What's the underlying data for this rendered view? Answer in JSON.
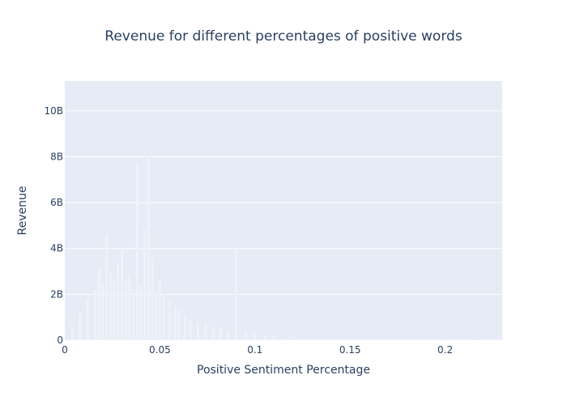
{
  "chart_data": {
    "type": "bar",
    "title": "Revenue for different percentages of positive words",
    "xlabel": "Positive Sentiment Percentage",
    "ylabel": "Revenue",
    "xlim": [
      0,
      0.23
    ],
    "ylim": [
      0,
      11.3
    ],
    "x_ticks": [
      0,
      0.05,
      0.1,
      0.15,
      0.2
    ],
    "x_tick_labels": [
      "0",
      "0.05",
      "0.1",
      "0.15",
      "0.2"
    ],
    "y_ticks": [
      0,
      2,
      4,
      6,
      8,
      10
    ],
    "y_tick_labels": [
      "0",
      "2B",
      "4B",
      "6B",
      "8B",
      "10B"
    ],
    "y_unit": "billions",
    "grid": true,
    "colors": {
      "plot_bg": "#e5ecf6",
      "grid": "#ffffff",
      "bar": "#eef2f9",
      "text": "#2a3f5f"
    },
    "x": [
      0.004,
      0.008,
      0.012,
      0.016,
      0.018,
      0.02,
      0.022,
      0.024,
      0.026,
      0.028,
      0.03,
      0.032,
      0.034,
      0.036,
      0.038,
      0.04,
      0.042,
      0.044,
      0.046,
      0.048,
      0.05,
      0.052,
      0.055,
      0.058,
      0.06,
      0.063,
      0.066,
      0.07,
      0.074,
      0.078,
      0.082,
      0.086,
      0.09,
      0.095,
      0.1,
      0.105,
      0.11,
      0.12,
      0.13,
      0.14,
      0.15,
      0.165,
      0.18,
      0.2,
      0.215
    ],
    "values": [
      0.6,
      1.2,
      1.8,
      2.2,
      3.1,
      2.5,
      4.6,
      3.0,
      2.7,
      3.4,
      4.0,
      2.6,
      2.9,
      2.2,
      7.7,
      2.4,
      4.8,
      8.0,
      3.6,
      2.1,
      2.6,
      2.0,
      1.7,
      1.5,
      1.3,
      1.1,
      0.9,
      0.8,
      0.7,
      0.6,
      0.55,
      0.45,
      4.0,
      0.35,
      0.3,
      0.25,
      0.2,
      0.15,
      0.12,
      0.1,
      0.08,
      0.06,
      0.05,
      0.04,
      0.03
    ]
  }
}
